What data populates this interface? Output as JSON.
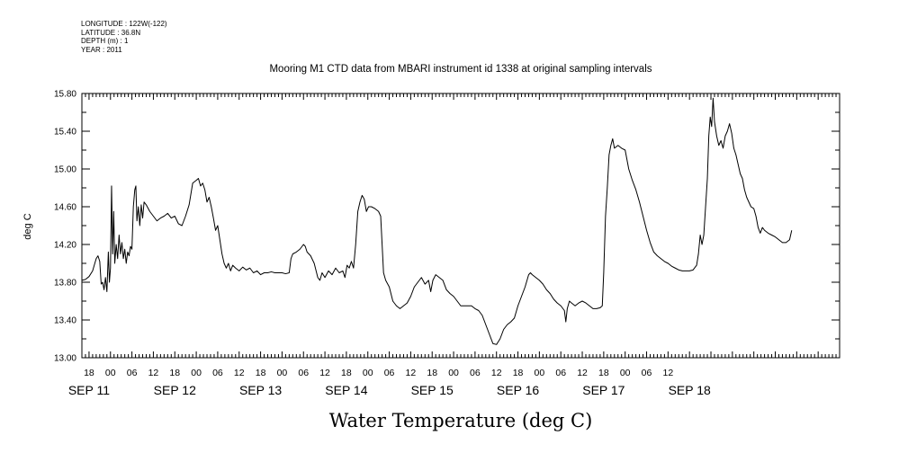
{
  "metadata": [
    "LONGITUDE : 122W(-122)",
    "LATITUDE : 36.8N",
    "DEPTH (m) : 1",
    "YEAR : 2011"
  ],
  "chart_data": {
    "type": "line",
    "title": "Mooring M1 CTD data from MBARI instrument id 1338 at original sampling intervals",
    "xlabel": "Water Temperature (deg C)",
    "ylabel": "deg C",
    "ylim": [
      13.0,
      15.8
    ],
    "yticks": [
      "13.00",
      "13.40",
      "13.80",
      "14.20",
      "14.60",
      "15.00",
      "15.40",
      "15.80"
    ],
    "xlim_hours": [
      -8,
      204
    ],
    "x_tick_labels": [
      "18",
      "00",
      "06",
      "12",
      "18",
      "00",
      "06",
      "12",
      "18",
      "00",
      "06",
      "12",
      "18",
      "00",
      "06",
      "12",
      "18",
      "00",
      "06",
      "12",
      "18",
      "00",
      "06",
      "12",
      "18",
      "00",
      "06",
      "12"
    ],
    "date_labels": [
      "SEP 11",
      "SEP 12",
      "SEP 13",
      "SEP 14",
      "SEP 15",
      "SEP 16",
      "SEP 17",
      "SEP 18"
    ],
    "grid": false,
    "series": [
      {
        "points": [
          [
            -8,
            13.82
          ],
          [
            -7,
            13.83
          ],
          [
            -6,
            13.86
          ],
          [
            -5,
            13.92
          ],
          [
            -4,
            14.05
          ],
          [
            -3.5,
            14.08
          ],
          [
            -3,
            14.02
          ],
          [
            -2.6,
            13.78
          ],
          [
            -2.2,
            13.8
          ],
          [
            -1.8,
            13.72
          ],
          [
            -1.4,
            13.85
          ],
          [
            -1,
            13.7
          ],
          [
            -0.6,
            14.12
          ],
          [
            -0.3,
            13.8
          ],
          [
            0,
            13.95
          ],
          [
            0.3,
            14.82
          ],
          [
            0.6,
            14.1
          ],
          [
            0.9,
            14.55
          ],
          [
            1.2,
            14.0
          ],
          [
            1.6,
            14.2
          ],
          [
            2,
            14.05
          ],
          [
            2.4,
            14.3
          ],
          [
            2.8,
            14.1
          ],
          [
            3.2,
            14.22
          ],
          [
            3.6,
            14.05
          ],
          [
            4,
            14.15
          ],
          [
            4.4,
            14.0
          ],
          [
            4.8,
            14.12
          ],
          [
            5.2,
            14.08
          ],
          [
            5.6,
            14.18
          ],
          [
            6,
            14.15
          ],
          [
            6.4,
            14.6
          ],
          [
            6.8,
            14.78
          ],
          [
            7.1,
            14.82
          ],
          [
            7.4,
            14.45
          ],
          [
            7.8,
            14.6
          ],
          [
            8.2,
            14.4
          ],
          [
            8.6,
            14.62
          ],
          [
            9,
            14.48
          ],
          [
            9.4,
            14.65
          ],
          [
            10,
            14.62
          ],
          [
            11,
            14.55
          ],
          [
            12,
            14.5
          ],
          [
            13,
            14.45
          ],
          [
            14,
            14.48
          ],
          [
            15,
            14.5
          ],
          [
            16,
            14.53
          ],
          [
            17,
            14.48
          ],
          [
            18,
            14.5
          ],
          [
            19,
            14.42
          ],
          [
            20,
            14.4
          ],
          [
            21,
            14.5
          ],
          [
            22,
            14.62
          ],
          [
            23,
            14.85
          ],
          [
            24,
            14.88
          ],
          [
            24.6,
            14.9
          ],
          [
            25.2,
            14.82
          ],
          [
            25.8,
            14.85
          ],
          [
            26.4,
            14.78
          ],
          [
            27,
            14.65
          ],
          [
            27.6,
            14.7
          ],
          [
            28.2,
            14.6
          ],
          [
            28.8,
            14.48
          ],
          [
            29.4,
            14.35
          ],
          [
            30,
            14.4
          ],
          [
            30.6,
            14.25
          ],
          [
            31.2,
            14.1
          ],
          [
            31.8,
            14.0
          ],
          [
            32.4,
            13.95
          ],
          [
            33,
            14.0
          ],
          [
            33.6,
            13.92
          ],
          [
            34.2,
            13.98
          ],
          [
            35,
            13.95
          ],
          [
            36,
            13.92
          ],
          [
            37,
            13.96
          ],
          [
            38,
            13.93
          ],
          [
            39,
            13.95
          ],
          [
            40,
            13.9
          ],
          [
            41,
            13.92
          ],
          [
            42,
            13.88
          ],
          [
            43,
            13.9
          ],
          [
            44,
            13.9
          ],
          [
            45,
            13.91
          ],
          [
            46,
            13.9
          ],
          [
            47,
            13.9
          ],
          [
            48,
            13.9
          ],
          [
            49,
            13.89
          ],
          [
            50,
            13.9
          ],
          [
            50.5,
            14.05
          ],
          [
            51,
            14.1
          ],
          [
            52,
            14.12
          ],
          [
            53,
            14.15
          ],
          [
            54,
            14.2
          ],
          [
            54.5,
            14.18
          ],
          [
            55,
            14.12
          ],
          [
            56,
            14.08
          ],
          [
            57,
            14.0
          ],
          [
            58,
            13.85
          ],
          [
            58.6,
            13.82
          ],
          [
            59.2,
            13.9
          ],
          [
            60,
            13.85
          ],
          [
            61,
            13.92
          ],
          [
            62,
            13.88
          ],
          [
            63,
            13.95
          ],
          [
            64,
            13.9
          ],
          [
            65,
            13.92
          ],
          [
            65.6,
            13.85
          ],
          [
            66.2,
            13.98
          ],
          [
            66.8,
            13.95
          ],
          [
            67.4,
            14.02
          ],
          [
            68,
            13.95
          ],
          [
            68.6,
            14.2
          ],
          [
            69.2,
            14.55
          ],
          [
            69.8,
            14.65
          ],
          [
            70.4,
            14.72
          ],
          [
            71,
            14.68
          ],
          [
            71.6,
            14.55
          ],
          [
            72.2,
            14.6
          ],
          [
            73,
            14.6
          ],
          [
            74,
            14.58
          ],
          [
            75,
            14.55
          ],
          [
            75.6,
            14.5
          ],
          [
            76,
            14.2
          ],
          [
            76.4,
            13.9
          ],
          [
            77,
            13.82
          ],
          [
            78,
            13.75
          ],
          [
            79,
            13.6
          ],
          [
            80,
            13.55
          ],
          [
            81,
            13.52
          ],
          [
            82,
            13.55
          ],
          [
            83,
            13.58
          ],
          [
            84,
            13.65
          ],
          [
            85,
            13.75
          ],
          [
            86,
            13.8
          ],
          [
            87,
            13.85
          ],
          [
            88,
            13.78
          ],
          [
            89,
            13.82
          ],
          [
            89.6,
            13.7
          ],
          [
            90.2,
            13.82
          ],
          [
            91,
            13.88
          ],
          [
            92,
            13.85
          ],
          [
            93,
            13.82
          ],
          [
            94,
            13.72
          ],
          [
            95,
            13.68
          ],
          [
            96,
            13.65
          ],
          [
            97,
            13.6
          ],
          [
            98,
            13.55
          ],
          [
            99,
            13.55
          ],
          [
            100,
            13.55
          ],
          [
            101,
            13.55
          ],
          [
            102,
            13.52
          ],
          [
            103,
            13.5
          ],
          [
            104,
            13.45
          ],
          [
            105,
            13.35
          ],
          [
            106,
            13.25
          ],
          [
            107,
            13.15
          ],
          [
            108,
            13.14
          ],
          [
            109,
            13.2
          ],
          [
            110,
            13.3
          ],
          [
            111,
            13.35
          ],
          [
            112,
            13.38
          ],
          [
            113,
            13.42
          ],
          [
            114,
            13.55
          ],
          [
            115,
            13.65
          ],
          [
            116,
            13.75
          ],
          [
            117,
            13.88
          ],
          [
            117.5,
            13.9
          ],
          [
            118,
            13.88
          ],
          [
            119,
            13.85
          ],
          [
            120,
            13.82
          ],
          [
            121,
            13.78
          ],
          [
            122,
            13.72
          ],
          [
            123,
            13.68
          ],
          [
            124,
            13.62
          ],
          [
            125,
            13.58
          ],
          [
            126,
            13.55
          ],
          [
            127,
            13.5
          ],
          [
            127.4,
            13.38
          ],
          [
            127.8,
            13.52
          ],
          [
            128.4,
            13.6
          ],
          [
            129,
            13.58
          ],
          [
            130,
            13.55
          ],
          [
            131,
            13.58
          ],
          [
            132,
            13.6
          ],
          [
            133,
            13.58
          ],
          [
            134,
            13.55
          ],
          [
            135,
            13.52
          ],
          [
            136,
            13.52
          ],
          [
            137,
            13.53
          ],
          [
            137.6,
            13.55
          ],
          [
            138,
            13.9
          ],
          [
            138.5,
            14.5
          ],
          [
            139,
            14.8
          ],
          [
            139.5,
            15.15
          ],
          [
            140,
            15.25
          ],
          [
            140.5,
            15.32
          ],
          [
            141,
            15.22
          ],
          [
            142,
            15.25
          ],
          [
            143,
            15.22
          ],
          [
            144,
            15.2
          ],
          [
            145,
            15.0
          ],
          [
            146,
            14.88
          ],
          [
            147,
            14.78
          ],
          [
            148,
            14.65
          ],
          [
            149,
            14.5
          ],
          [
            150,
            14.35
          ],
          [
            151,
            14.22
          ],
          [
            152,
            14.12
          ],
          [
            153,
            14.08
          ],
          [
            154,
            14.05
          ],
          [
            155,
            14.02
          ],
          [
            156,
            14.0
          ],
          [
            157,
            13.97
          ],
          [
            158,
            13.95
          ],
          [
            159,
            13.93
          ],
          [
            160,
            13.92
          ],
          [
            161,
            13.92
          ],
          [
            162,
            13.92
          ],
          [
            163,
            13.93
          ],
          [
            164,
            13.98
          ],
          [
            164.5,
            14.1
          ],
          [
            165,
            14.3
          ],
          [
            165.5,
            14.2
          ],
          [
            166,
            14.3
          ],
          [
            166.5,
            14.6
          ],
          [
            167,
            14.9
          ],
          [
            167.4,
            15.35
          ],
          [
            167.8,
            15.55
          ],
          [
            168.2,
            15.45
          ],
          [
            168.6,
            15.75
          ],
          [
            169,
            15.5
          ],
          [
            169.6,
            15.35
          ],
          [
            170.2,
            15.25
          ],
          [
            170.8,
            15.3
          ],
          [
            171.4,
            15.22
          ],
          [
            172,
            15.35
          ],
          [
            172.6,
            15.4
          ],
          [
            173.2,
            15.48
          ],
          [
            173.8,
            15.38
          ],
          [
            174.4,
            15.22
          ],
          [
            175,
            15.15
          ],
          [
            175.6,
            15.05
          ],
          [
            176.2,
            14.95
          ],
          [
            176.8,
            14.9
          ],
          [
            177.4,
            14.78
          ],
          [
            178,
            14.7
          ],
          [
            178.6,
            14.65
          ],
          [
            179.2,
            14.6
          ],
          [
            180,
            14.58
          ],
          [
            180.6,
            14.5
          ],
          [
            181.2,
            14.38
          ],
          [
            181.8,
            14.32
          ],
          [
            182.4,
            14.38
          ],
          [
            183,
            14.35
          ],
          [
            184,
            14.32
          ],
          [
            185,
            14.3
          ],
          [
            186,
            14.28
          ],
          [
            187,
            14.25
          ],
          [
            188,
            14.22
          ],
          [
            189,
            14.22
          ],
          [
            190,
            14.25
          ],
          [
            190.6,
            14.35
          ]
        ]
      }
    ]
  }
}
